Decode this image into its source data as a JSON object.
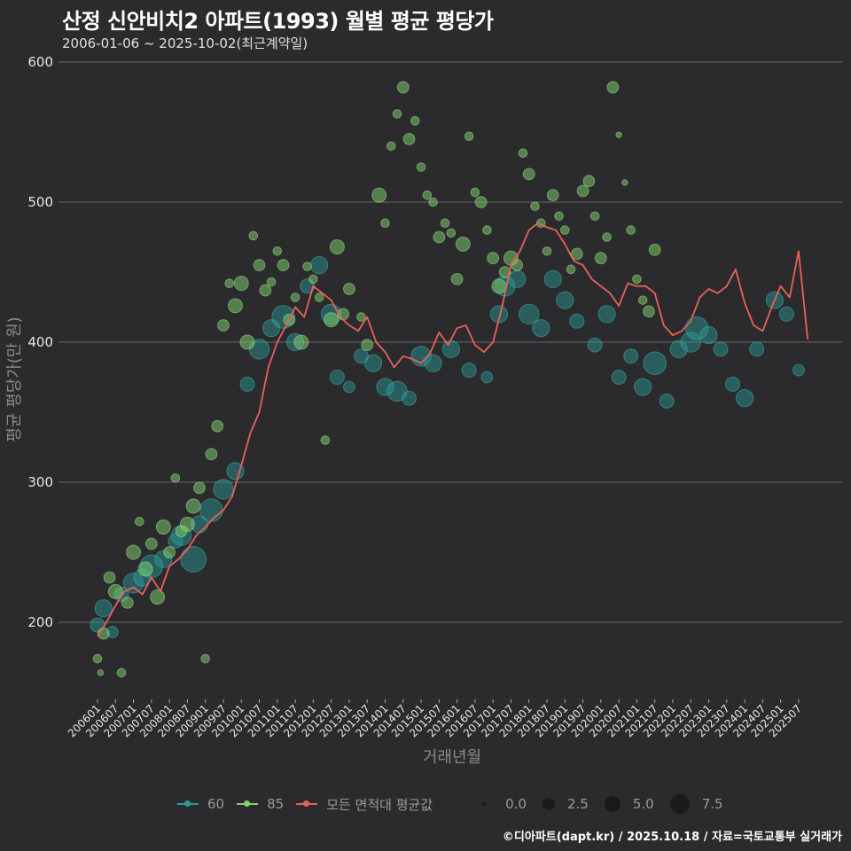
{
  "header": {
    "title": "산정 신안비치2 아파트(1993) 월별 평균 평당가",
    "subtitle": "2006-01-06 ~ 2025-10-02(최근계약일)"
  },
  "axes": {
    "x_title": "거래년월",
    "y_title": "평균 평당가(만 원)"
  },
  "legend": {
    "series": [
      {
        "label": "60",
        "color": "#2a9d9b"
      },
      {
        "label": "85",
        "color": "#7fd36b"
      },
      {
        "label": "모든 면적대 평균값",
        "color": "#e8615c"
      }
    ],
    "sizes": [
      {
        "label": "0.0",
        "size": 4
      },
      {
        "label": "2.5",
        "size": 14
      },
      {
        "label": "5.0",
        "size": 19
      },
      {
        "label": "7.5",
        "size": 23
      }
    ]
  },
  "footer": "©디아파트(dapt.kr) / 2025.10.18 / 자료=국토교통부 실거래가",
  "chart_data": {
    "type": "scatter+line",
    "title": "산정 신안비치2 아파트(1993) 월별 평균 평당가",
    "subtitle": "2006-01-06 ~ 2025-10-02(최근계약일)",
    "xlabel": "거래년월",
    "ylabel": "평균 평당가(만 원)",
    "ylim": [
      140,
      600
    ],
    "yticks": [
      200,
      300,
      400,
      500,
      600
    ],
    "xticks": [
      "200601",
      "200607",
      "200701",
      "200707",
      "200801",
      "200807",
      "200901",
      "200907",
      "201001",
      "201007",
      "201101",
      "201107",
      "201201",
      "201207",
      "201301",
      "201307",
      "201401",
      "201407",
      "201501",
      "201507",
      "201601",
      "201607",
      "201701",
      "201707",
      "201801",
      "201807",
      "201901",
      "201907",
      "202001",
      "202007",
      "202101",
      "202107",
      "202201",
      "202207",
      "202301",
      "202307",
      "202401",
      "202407",
      "202501",
      "202507"
    ],
    "grid": true,
    "legend_position": "bottom",
    "average_line": {
      "name": "모든 면적대 평균값",
      "color": "#e8615c",
      "month_index": [
        0,
        3,
        6,
        9,
        12,
        15,
        18,
        21,
        24,
        27,
        30,
        33,
        36,
        39,
        42,
        45,
        48,
        51,
        54,
        57,
        60,
        63,
        66,
        69,
        72,
        75,
        78,
        81,
        84,
        87,
        90,
        93,
        96,
        99,
        102,
        105,
        108,
        111,
        114,
        117,
        120,
        123,
        126,
        129,
        132,
        135,
        138,
        141,
        144,
        147,
        150,
        153,
        156,
        159,
        162,
        165,
        168,
        171,
        174,
        177,
        180,
        183,
        186,
        189,
        192,
        195,
        198,
        201,
        204,
        207,
        210,
        213,
        216,
        219,
        222,
        225,
        228,
        231,
        234,
        237
      ],
      "values": [
        190,
        200,
        212,
        222,
        225,
        220,
        232,
        222,
        240,
        245,
        252,
        262,
        268,
        275,
        280,
        290,
        312,
        335,
        350,
        382,
        400,
        412,
        425,
        418,
        440,
        435,
        430,
        418,
        412,
        408,
        418,
        400,
        393,
        382,
        390,
        388,
        385,
        392,
        407,
        398,
        410,
        412,
        398,
        393,
        400,
        425,
        455,
        465,
        480,
        485,
        482,
        480,
        470,
        458,
        455,
        445,
        440,
        435,
        426,
        442,
        440,
        440,
        435,
        412,
        405,
        408,
        415,
        432,
        438,
        435,
        440,
        452,
        428,
        412,
        408,
        425,
        440,
        432,
        465,
        402
      ]
    },
    "series": [
      {
        "name": "60",
        "color": "#2a9d9b",
        "points": [
          [
            0,
            198,
            5
          ],
          [
            2,
            210,
            6
          ],
          [
            5,
            193,
            4
          ],
          [
            8,
            220,
            5
          ],
          [
            12,
            228,
            7
          ],
          [
            15,
            232,
            6
          ],
          [
            18,
            240,
            8
          ],
          [
            22,
            245,
            6
          ],
          [
            26,
            258,
            5
          ],
          [
            28,
            262,
            7
          ],
          [
            32,
            245,
            9
          ],
          [
            34,
            270,
            6
          ],
          [
            38,
            280,
            8
          ],
          [
            42,
            295,
            7
          ],
          [
            46,
            308,
            6
          ],
          [
            50,
            370,
            5
          ],
          [
            54,
            395,
            7
          ],
          [
            58,
            410,
            6
          ],
          [
            62,
            418,
            8
          ],
          [
            66,
            400,
            6
          ],
          [
            70,
            440,
            5
          ],
          [
            74,
            455,
            6
          ],
          [
            78,
            420,
            7
          ],
          [
            80,
            375,
            5
          ],
          [
            84,
            368,
            4
          ],
          [
            88,
            390,
            5
          ],
          [
            92,
            385,
            6
          ],
          [
            96,
            368,
            6
          ],
          [
            100,
            365,
            7
          ],
          [
            104,
            360,
            5
          ],
          [
            108,
            390,
            7
          ],
          [
            112,
            385,
            6
          ],
          [
            118,
            395,
            6
          ],
          [
            124,
            380,
            5
          ],
          [
            130,
            375,
            4
          ],
          [
            134,
            420,
            6
          ],
          [
            136,
            440,
            7
          ],
          [
            140,
            445,
            6
          ],
          [
            144,
            420,
            7
          ],
          [
            148,
            410,
            6
          ],
          [
            152,
            445,
            6
          ],
          [
            156,
            430,
            6
          ],
          [
            160,
            415,
            5
          ],
          [
            166,
            398,
            5
          ],
          [
            170,
            420,
            6
          ],
          [
            174,
            375,
            5
          ],
          [
            178,
            390,
            5
          ],
          [
            182,
            368,
            6
          ],
          [
            186,
            385,
            8
          ],
          [
            190,
            358,
            5
          ],
          [
            194,
            395,
            6
          ],
          [
            198,
            400,
            7
          ],
          [
            200,
            410,
            8
          ],
          [
            204,
            405,
            6
          ],
          [
            208,
            395,
            5
          ],
          [
            212,
            370,
            5
          ],
          [
            216,
            360,
            6
          ],
          [
            220,
            395,
            5
          ],
          [
            226,
            430,
            6
          ],
          [
            230,
            420,
            5
          ],
          [
            234,
            380,
            4
          ]
        ]
      },
      {
        "name": "85",
        "color": "#7fd36b",
        "points": [
          [
            0,
            174,
            3
          ],
          [
            1,
            164,
            2
          ],
          [
            2,
            192,
            4
          ],
          [
            4,
            232,
            4
          ],
          [
            6,
            222,
            5
          ],
          [
            8,
            164,
            3
          ],
          [
            10,
            214,
            4
          ],
          [
            12,
            250,
            5
          ],
          [
            14,
            272,
            3
          ],
          [
            16,
            238,
            5
          ],
          [
            18,
            256,
            4
          ],
          [
            20,
            218,
            5
          ],
          [
            22,
            268,
            5
          ],
          [
            24,
            250,
            4
          ],
          [
            26,
            303,
            3
          ],
          [
            28,
            265,
            4
          ],
          [
            30,
            270,
            5
          ],
          [
            32,
            283,
            5
          ],
          [
            34,
            296,
            4
          ],
          [
            36,
            174,
            3
          ],
          [
            38,
            320,
            4
          ],
          [
            40,
            340,
            4
          ],
          [
            42,
            412,
            4
          ],
          [
            44,
            442,
            3
          ],
          [
            46,
            426,
            5
          ],
          [
            48,
            442,
            5
          ],
          [
            50,
            400,
            5
          ],
          [
            52,
            476,
            3
          ],
          [
            54,
            455,
            4
          ],
          [
            56,
            437,
            4
          ],
          [
            58,
            443,
            3
          ],
          [
            60,
            465,
            3
          ],
          [
            62,
            455,
            4
          ],
          [
            64,
            416,
            4
          ],
          [
            66,
            432,
            3
          ],
          [
            68,
            400,
            5
          ],
          [
            70,
            454,
            3
          ],
          [
            72,
            445,
            3
          ],
          [
            74,
            432,
            3
          ],
          [
            76,
            330,
            3
          ],
          [
            78,
            416,
            5
          ],
          [
            80,
            468,
            5
          ],
          [
            82,
            420,
            4
          ],
          [
            84,
            438,
            4
          ],
          [
            88,
            418,
            3
          ],
          [
            90,
            398,
            4
          ],
          [
            94,
            505,
            5
          ],
          [
            96,
            485,
            3
          ],
          [
            98,
            540,
            3
          ],
          [
            100,
            563,
            3
          ],
          [
            102,
            582,
            4
          ],
          [
            104,
            545,
            4
          ],
          [
            106,
            558,
            3
          ],
          [
            108,
            525,
            3
          ],
          [
            110,
            505,
            3
          ],
          [
            112,
            500,
            3
          ],
          [
            114,
            475,
            4
          ],
          [
            116,
            485,
            3
          ],
          [
            118,
            478,
            3
          ],
          [
            120,
            445,
            4
          ],
          [
            122,
            470,
            5
          ],
          [
            124,
            547,
            3
          ],
          [
            126,
            507,
            3
          ],
          [
            128,
            500,
            4
          ],
          [
            130,
            480,
            3
          ],
          [
            132,
            460,
            4
          ],
          [
            134,
            440,
            5
          ],
          [
            136,
            450,
            4
          ],
          [
            138,
            460,
            5
          ],
          [
            140,
            455,
            4
          ],
          [
            142,
            535,
            3
          ],
          [
            144,
            520,
            4
          ],
          [
            146,
            497,
            3
          ],
          [
            148,
            485,
            3
          ],
          [
            150,
            465,
            3
          ],
          [
            152,
            505,
            4
          ],
          [
            154,
            490,
            3
          ],
          [
            156,
            480,
            3
          ],
          [
            158,
            452,
            3
          ],
          [
            160,
            463,
            4
          ],
          [
            162,
            508,
            4
          ],
          [
            164,
            515,
            4
          ],
          [
            166,
            490,
            3
          ],
          [
            168,
            460,
            4
          ],
          [
            170,
            475,
            3
          ],
          [
            172,
            582,
            4
          ],
          [
            174,
            548,
            2
          ],
          [
            176,
            514,
            2
          ],
          [
            178,
            480,
            3
          ],
          [
            180,
            445,
            3
          ],
          [
            182,
            430,
            3
          ],
          [
            184,
            422,
            4
          ],
          [
            186,
            466,
            4
          ]
        ]
      }
    ]
  }
}
